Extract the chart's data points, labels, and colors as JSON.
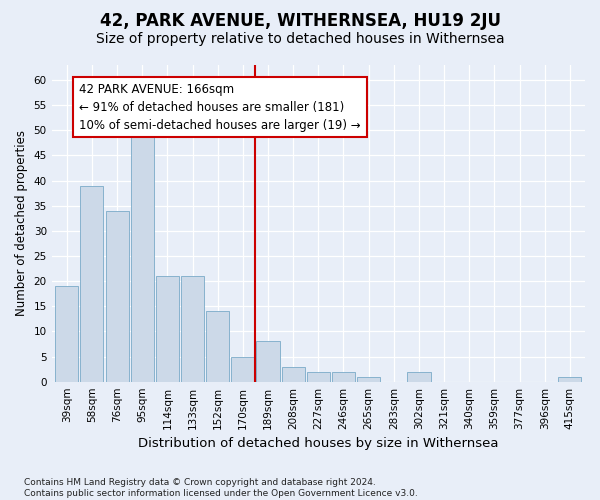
{
  "title": "42, PARK AVENUE, WITHERNSEA, HU19 2JU",
  "subtitle": "Size of property relative to detached houses in Withernsea",
  "xlabel": "Distribution of detached houses by size in Withernsea",
  "ylabel": "Number of detached properties",
  "bar_labels": [
    "39sqm",
    "58sqm",
    "76sqm",
    "95sqm",
    "114sqm",
    "133sqm",
    "152sqm",
    "170sqm",
    "189sqm",
    "208sqm",
    "227sqm",
    "246sqm",
    "265sqm",
    "283sqm",
    "302sqm",
    "321sqm",
    "340sqm",
    "359sqm",
    "377sqm",
    "396sqm",
    "415sqm"
  ],
  "bar_values": [
    19,
    39,
    34,
    49,
    21,
    21,
    14,
    5,
    8,
    3,
    2,
    2,
    1,
    0,
    2,
    0,
    0,
    0,
    0,
    0,
    1
  ],
  "bar_color": "#ccd9e8",
  "bar_edge_color": "#7aaac8",
  "background_color": "#e8eef8",
  "grid_color": "#ffffff",
  "red_line_x": 7.47,
  "red_line_color": "#cc0000",
  "annotation_text": "42 PARK AVENUE: 166sqm\n← 91% of detached houses are smaller (181)\n10% of semi-detached houses are larger (19) →",
  "annotation_box_facecolor": "#ffffff",
  "annotation_box_edgecolor": "#cc0000",
  "ylim": [
    0,
    63
  ],
  "yticks": [
    0,
    5,
    10,
    15,
    20,
    25,
    30,
    35,
    40,
    45,
    50,
    55,
    60
  ],
  "footnote": "Contains HM Land Registry data © Crown copyright and database right 2024.\nContains public sector information licensed under the Open Government Licence v3.0.",
  "title_fontsize": 12,
  "subtitle_fontsize": 10,
  "xlabel_fontsize": 9.5,
  "ylabel_fontsize": 8.5,
  "tick_fontsize": 7.5,
  "annotation_fontsize": 8.5,
  "footnote_fontsize": 6.5
}
